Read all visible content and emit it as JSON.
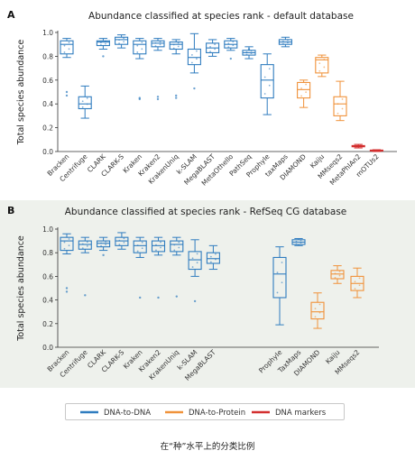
{
  "chart_data": [
    {
      "panel_label": "A",
      "type": "box",
      "title": "Abundance classified at species rank - default database",
      "ylabel": "Total species abundance",
      "ylim": [
        0,
        1.0
      ],
      "yticks": [
        "0.0",
        "0.2",
        "0.4",
        "0.6",
        "0.8",
        "1.0"
      ],
      "grid": false,
      "boxes": [
        {
          "label": "Bracken",
          "group": "DNA-to-DNA",
          "min": 0.79,
          "q1": 0.82,
          "median": 0.9,
          "q3": 0.93,
          "max": 0.95,
          "outliers": [
            0.47,
            0.5
          ]
        },
        {
          "label": "Centrifuge",
          "group": "DNA-to-DNA",
          "min": 0.28,
          "q1": 0.36,
          "median": 0.4,
          "q3": 0.46,
          "max": 0.55,
          "outliers": []
        },
        {
          "label": "CLARK",
          "group": "DNA-to-DNA",
          "min": 0.86,
          "q1": 0.89,
          "median": 0.92,
          "q3": 0.93,
          "max": 0.95,
          "outliers": [
            0.8
          ]
        },
        {
          "label": "CLARK-S",
          "group": "DNA-to-DNA",
          "min": 0.87,
          "q1": 0.9,
          "median": 0.94,
          "q3": 0.96,
          "max": 0.98,
          "outliers": []
        },
        {
          "label": "Kraken",
          "group": "DNA-to-DNA",
          "min": 0.78,
          "q1": 0.82,
          "median": 0.9,
          "q3": 0.93,
          "max": 0.95,
          "outliers": [
            0.44,
            0.45
          ]
        },
        {
          "label": "Kraken2",
          "group": "DNA-to-DNA",
          "min": 0.85,
          "q1": 0.88,
          "median": 0.91,
          "q3": 0.93,
          "max": 0.95,
          "outliers": [
            0.44,
            0.46
          ]
        },
        {
          "label": "KrakenUniq",
          "group": "DNA-to-DNA",
          "min": 0.82,
          "q1": 0.86,
          "median": 0.9,
          "q3": 0.92,
          "max": 0.94,
          "outliers": [
            0.45,
            0.47
          ]
        },
        {
          "label": "k-SLAM",
          "group": "DNA-to-DNA",
          "min": 0.66,
          "q1": 0.73,
          "median": 0.79,
          "q3": 0.86,
          "max": 0.99,
          "outliers": [
            0.53
          ]
        },
        {
          "label": "MegaBLAST",
          "group": "DNA-to-DNA",
          "min": 0.8,
          "q1": 0.83,
          "median": 0.87,
          "q3": 0.91,
          "max": 0.94,
          "outliers": []
        },
        {
          "label": "MetaOthello",
          "group": "DNA-to-DNA",
          "min": 0.85,
          "q1": 0.87,
          "median": 0.9,
          "q3": 0.93,
          "max": 0.95,
          "outliers": [
            0.78
          ]
        },
        {
          "label": "PathSeq",
          "group": "DNA-to-DNA",
          "min": 0.78,
          "q1": 0.81,
          "median": 0.83,
          "q3": 0.85,
          "max": 0.88,
          "outliers": [
            0.86
          ]
        },
        {
          "label": "Prophyle",
          "group": "DNA-to-DNA",
          "min": 0.31,
          "q1": 0.45,
          "median": 0.6,
          "q3": 0.73,
          "max": 0.82,
          "outliers": []
        },
        {
          "label": "taxMaps",
          "group": "DNA-to-DNA",
          "min": 0.88,
          "q1": 0.9,
          "median": 0.92,
          "q3": 0.94,
          "max": 0.96,
          "outliers": []
        },
        {
          "label": "DIAMOND",
          "group": "DNA-to-Protein",
          "min": 0.37,
          "q1": 0.45,
          "median": 0.52,
          "q3": 0.58,
          "max": 0.6,
          "outliers": []
        },
        {
          "label": "Kaiju",
          "group": "DNA-to-Protein",
          "min": 0.63,
          "q1": 0.66,
          "median": 0.77,
          "q3": 0.79,
          "max": 0.81,
          "outliers": []
        },
        {
          "label": "MMseqs2",
          "group": "DNA-to-Protein",
          "min": 0.26,
          "q1": 0.3,
          "median": 0.4,
          "q3": 0.46,
          "max": 0.59,
          "outliers": []
        },
        {
          "label": "MetaPhlAn2",
          "group": "DNA markers",
          "min": 0.03,
          "q1": 0.04,
          "median": 0.045,
          "q3": 0.05,
          "max": 0.06,
          "outliers": []
        },
        {
          "label": "mOTUs2",
          "group": "DNA markers",
          "min": 0.0,
          "q1": 0.005,
          "median": 0.008,
          "q3": 0.012,
          "max": 0.015,
          "outliers": []
        }
      ]
    },
    {
      "panel_label": "B",
      "type": "box",
      "title": "Abundance classified at species rank - RefSeq CG database",
      "ylabel": "Total species abundance",
      "ylim": [
        0,
        1.0
      ],
      "yticks": [
        "0.0",
        "0.2",
        "0.4",
        "0.6",
        "0.8",
        "1.0"
      ],
      "grid": false,
      "boxes": [
        {
          "label": "Bracken",
          "group": "DNA-to-DNA",
          "min": 0.79,
          "q1": 0.82,
          "median": 0.9,
          "q3": 0.93,
          "max": 0.96,
          "outliers": [
            0.47,
            0.5
          ]
        },
        {
          "label": "Centrifuge",
          "group": "DNA-to-DNA",
          "min": 0.8,
          "q1": 0.83,
          "median": 0.87,
          "q3": 0.9,
          "max": 0.93,
          "outliers": [
            0.44
          ]
        },
        {
          "label": "CLARK",
          "group": "DNA-to-DNA",
          "min": 0.82,
          "q1": 0.85,
          "median": 0.88,
          "q3": 0.9,
          "max": 0.93,
          "outliers": [
            0.78
          ]
        },
        {
          "label": "CLARK-S",
          "group": "DNA-to-DNA",
          "min": 0.83,
          "q1": 0.86,
          "median": 0.9,
          "q3": 0.93,
          "max": 0.97,
          "outliers": []
        },
        {
          "label": "Kraken",
          "group": "DNA-to-DNA",
          "min": 0.76,
          "q1": 0.8,
          "median": 0.86,
          "q3": 0.9,
          "max": 0.93,
          "outliers": [
            0.42
          ]
        },
        {
          "label": "Kraken2",
          "group": "DNA-to-DNA",
          "min": 0.78,
          "q1": 0.81,
          "median": 0.86,
          "q3": 0.9,
          "max": 0.93,
          "outliers": [
            0.42
          ]
        },
        {
          "label": "KrakenUniq",
          "group": "DNA-to-DNA",
          "min": 0.78,
          "q1": 0.81,
          "median": 0.87,
          "q3": 0.9,
          "max": 0.93,
          "outliers": [
            0.43
          ]
        },
        {
          "label": "k-SLAM",
          "group": "DNA-to-DNA",
          "min": 0.6,
          "q1": 0.66,
          "median": 0.74,
          "q3": 0.81,
          "max": 0.91,
          "outliers": [
            0.39
          ]
        },
        {
          "label": "MegaBLAST",
          "group": "DNA-to-DNA",
          "min": 0.66,
          "q1": 0.71,
          "median": 0.75,
          "q3": 0.8,
          "max": 0.86,
          "outliers": []
        },
        {
          "label": "Prophyle",
          "group": "DNA-to-DNA",
          "min": 0.19,
          "q1": 0.42,
          "median": 0.62,
          "q3": 0.76,
          "max": 0.85,
          "outliers": []
        },
        {
          "label": "TaxMaps",
          "group": "DNA-to-DNA",
          "min": 0.86,
          "q1": 0.87,
          "median": 0.89,
          "q3": 0.91,
          "max": 0.92,
          "outliers": []
        },
        {
          "label": "DIAMOND",
          "group": "DNA-to-Protein",
          "min": 0.16,
          "q1": 0.24,
          "median": 0.3,
          "q3": 0.38,
          "max": 0.46,
          "outliers": []
        },
        {
          "label": "Kaiju",
          "group": "DNA-to-Protein",
          "min": 0.54,
          "q1": 0.58,
          "median": 0.62,
          "q3": 0.65,
          "max": 0.69,
          "outliers": []
        },
        {
          "label": "MMseqs2",
          "group": "DNA-to-Protein",
          "min": 0.42,
          "q1": 0.48,
          "median": 0.54,
          "q3": 0.6,
          "max": 0.67,
          "outliers": []
        }
      ]
    }
  ],
  "legend": {
    "items": [
      {
        "label": "DNA-to-DNA",
        "color": "#2f7cbf"
      },
      {
        "label": "DNA-to-Protein",
        "color": "#f0923a"
      },
      {
        "label": "DNA markers",
        "color": "#d32f2f"
      }
    ]
  },
  "group_colors": {
    "DNA-to-DNA": "#2f7cbf",
    "DNA-to-Protein": "#f0923a",
    "DNA markers": "#d32f2f"
  },
  "caption": "在“种”水平上的分类比例"
}
